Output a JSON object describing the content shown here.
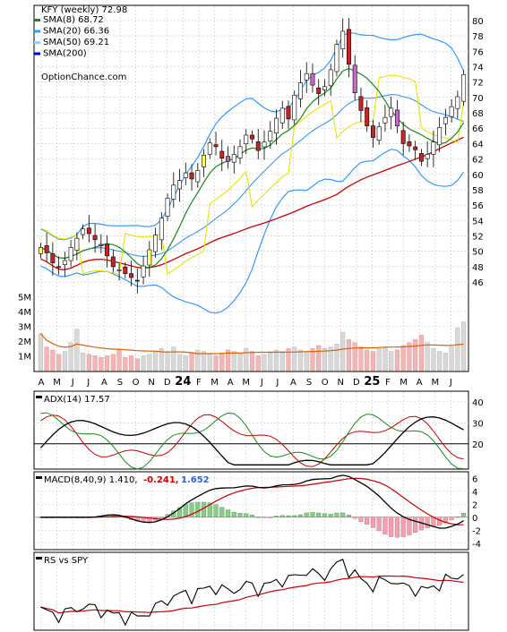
{
  "chart_data": [
    {
      "type": "candlestick",
      "title": "KFY (weekly) 72.98",
      "credit": "OptionChance.com",
      "x_tick_labels": [
        "A",
        "M",
        "J",
        "J",
        "A",
        "S",
        "O",
        "N",
        "D",
        "24",
        "F",
        "M",
        "A",
        "M",
        "J",
        "J",
        "A",
        "S",
        "O",
        "N",
        "D",
        "25",
        "F",
        "M",
        "A",
        "M",
        "J"
      ],
      "y_ticks": [
        46,
        48,
        50,
        52,
        54,
        56,
        58,
        60,
        62,
        64,
        66,
        68,
        70,
        72,
        74,
        76,
        78,
        80
      ],
      "ylim": [
        44.5,
        81.5
      ],
      "legend": [
        {
          "label": "SMA(8) 68.72",
          "color": "#1a8a1a"
        },
        {
          "label": "SMA(20) 66.36",
          "color": "#3399ff"
        },
        {
          "label": "SMA(50) 69.21",
          "color": "#99ccff"
        },
        {
          "label": "SMA(200)",
          "color": "#0000cc"
        }
      ],
      "close": [
        50.5,
        49.8,
        48.5,
        47.9,
        48.8,
        50.5,
        51.7,
        52.9,
        52.3,
        51.5,
        50.7,
        49.4,
        48.0,
        47.6,
        47.1,
        46.6,
        46.2,
        48.1,
        50.2,
        52.1,
        54.3,
        56.9,
        58.6,
        59.2,
        60.2,
        59.4,
        60.5,
        62.5,
        64.1,
        63.6,
        62.1,
        61.7,
        62.6,
        63.6,
        65.1,
        64.6,
        63.1,
        64.2,
        65.6,
        67.3,
        68.6,
        67.2,
        70.3,
        71.9,
        73.1,
        71.6,
        70.5,
        71.4,
        73.6,
        76.9,
        78.6,
        74.3,
        70.6,
        68.3,
        66.3,
        64.8,
        66.2,
        67.4,
        68.6,
        66.3,
        64.0,
        63.7,
        63.2,
        61.7,
        62.6,
        64.2,
        66.1,
        67.4,
        68.8,
        70.1,
        72.98
      ],
      "volume_millions": [
        2.5,
        1.6,
        1.4,
        1.1,
        1.3,
        1.9,
        2.8,
        1.2,
        1.1,
        1.0,
        0.9,
        1.0,
        1.1,
        1.4,
        0.9,
        1.0,
        0.8,
        1.0,
        1.1,
        1.3,
        1.5,
        1.3,
        1.6,
        1.1,
        1.0,
        1.2,
        1.4,
        1.3,
        1.1,
        1.0,
        1.2,
        1.4,
        1.3,
        1.2,
        1.5,
        1.3,
        1.0,
        1.1,
        1.2,
        1.4,
        1.3,
        1.5,
        1.6,
        1.4,
        1.3,
        1.5,
        1.7,
        1.5,
        1.6,
        1.8,
        2.6,
        2.1,
        1.9,
        1.6,
        1.4,
        1.3,
        1.5,
        1.6,
        1.3,
        1.4,
        1.7,
        1.9,
        2.1,
        2.4,
        1.9,
        1.5,
        1.3,
        1.2,
        1.6,
        2.9,
        3.3
      ],
      "volume_ticks": [
        "1M",
        "2M",
        "3M",
        "4M",
        "5M"
      ]
    },
    {
      "type": "line",
      "title": "ADX(14) 17.57",
      "y_ticks": [
        20,
        30,
        40
      ],
      "ylim": [
        8,
        45
      ],
      "reference_line": 20
    },
    {
      "type": "bar+line",
      "title": "MACD(8,40,9) 1.410,",
      "values_labels": [
        "-0.241,",
        "1.652"
      ],
      "y_ticks": [
        -4,
        -2,
        0,
        2,
        4,
        6
      ],
      "ylim": [
        -5,
        7
      ]
    },
    {
      "type": "line",
      "title": "RS vs SPY"
    }
  ]
}
